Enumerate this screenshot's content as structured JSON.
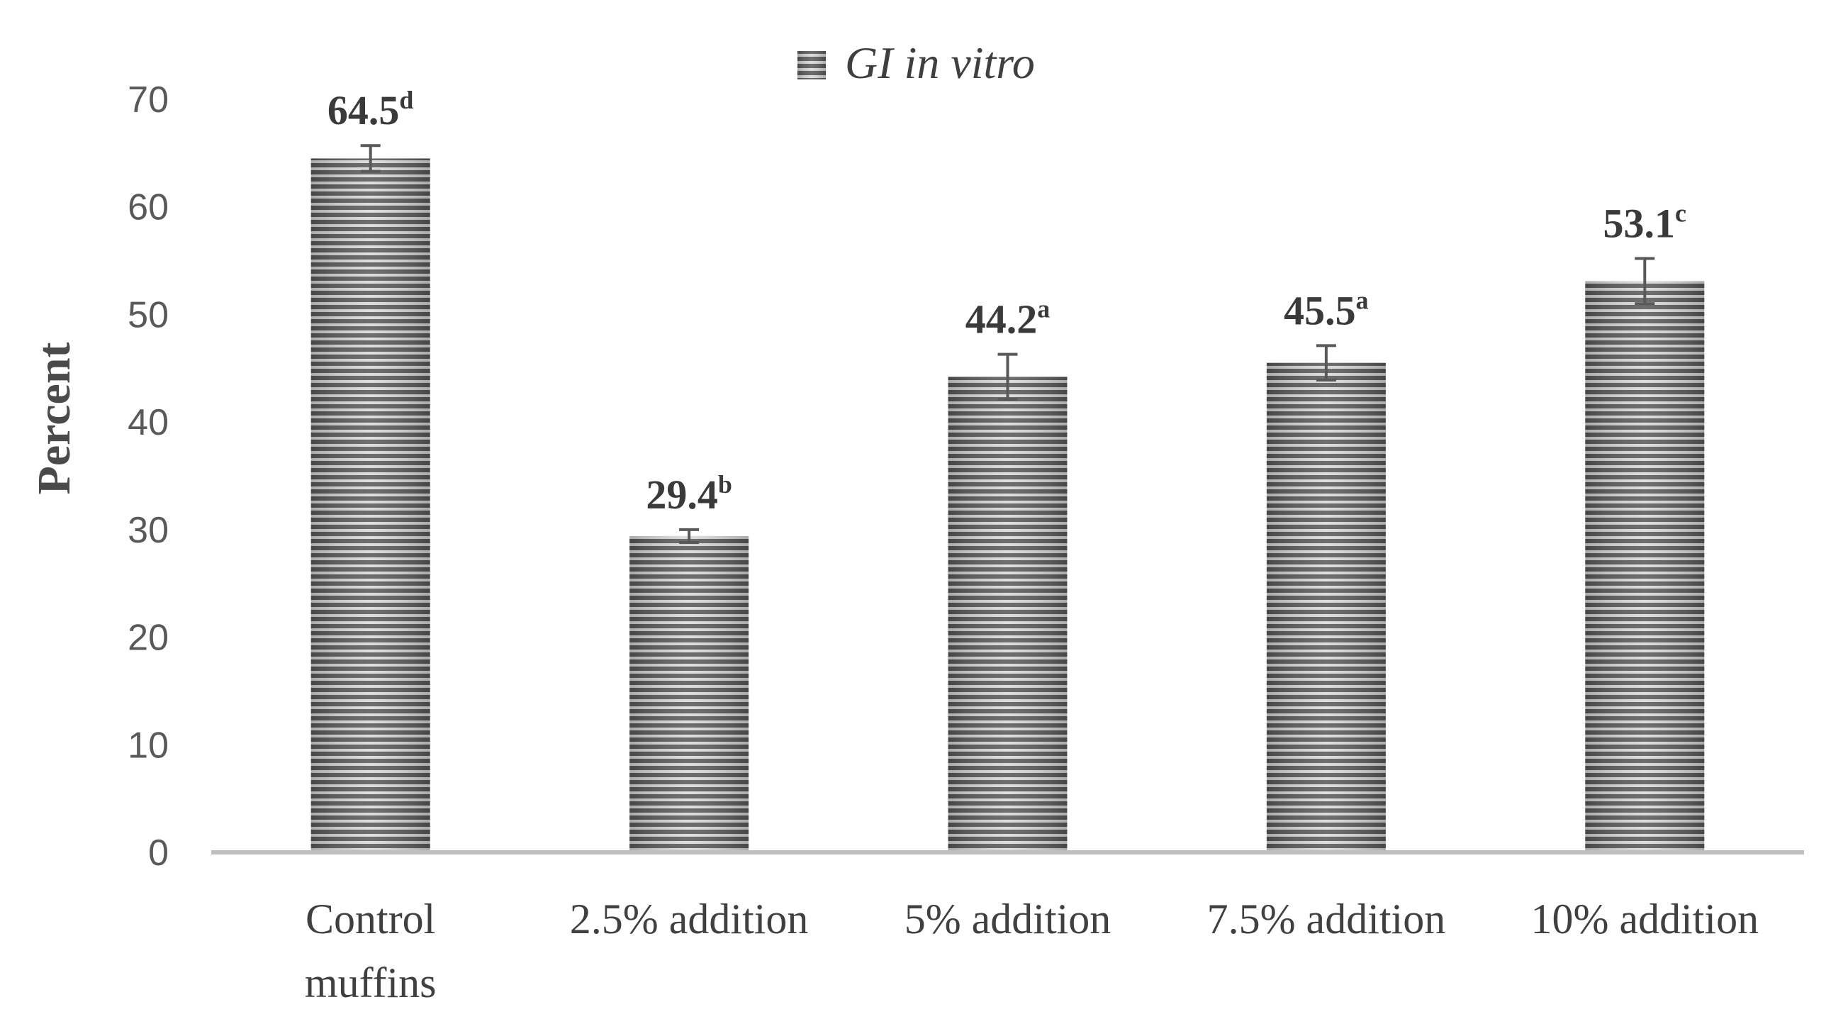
{
  "chart_data": {
    "type": "bar",
    "title": "",
    "xlabel": "",
    "ylabel": "Percent",
    "ylim": [
      0,
      70
    ],
    "yticks": [
      0,
      10,
      20,
      30,
      40,
      50,
      60,
      70
    ],
    "grid": false,
    "legend": {
      "position": "top-center",
      "entries": [
        "GI in vitro"
      ]
    },
    "categories": [
      [
        "Control",
        "muffins"
      ],
      [
        "2.5% addition"
      ],
      [
        "5% addition"
      ],
      [
        "7.5% addition"
      ],
      [
        "10% addition"
      ]
    ],
    "series": [
      {
        "name": "GI in vitro",
        "values": [
          64.5,
          29.4,
          44.2,
          45.5,
          53.1
        ],
        "errors": [
          1.2,
          0.6,
          2.1,
          1.6,
          2.1
        ],
        "labels": [
          "64.5",
          "29.4",
          "44.2",
          "45.5",
          "53.1"
        ],
        "superscripts": [
          "d",
          "b",
          "a",
          "a",
          "c"
        ]
      }
    ],
    "colors": {
      "bar_dark": "#5a5a5a",
      "bar_light": "#d8d8d8",
      "axis": "#bfbfbf",
      "error_bar": "#595959"
    }
  }
}
